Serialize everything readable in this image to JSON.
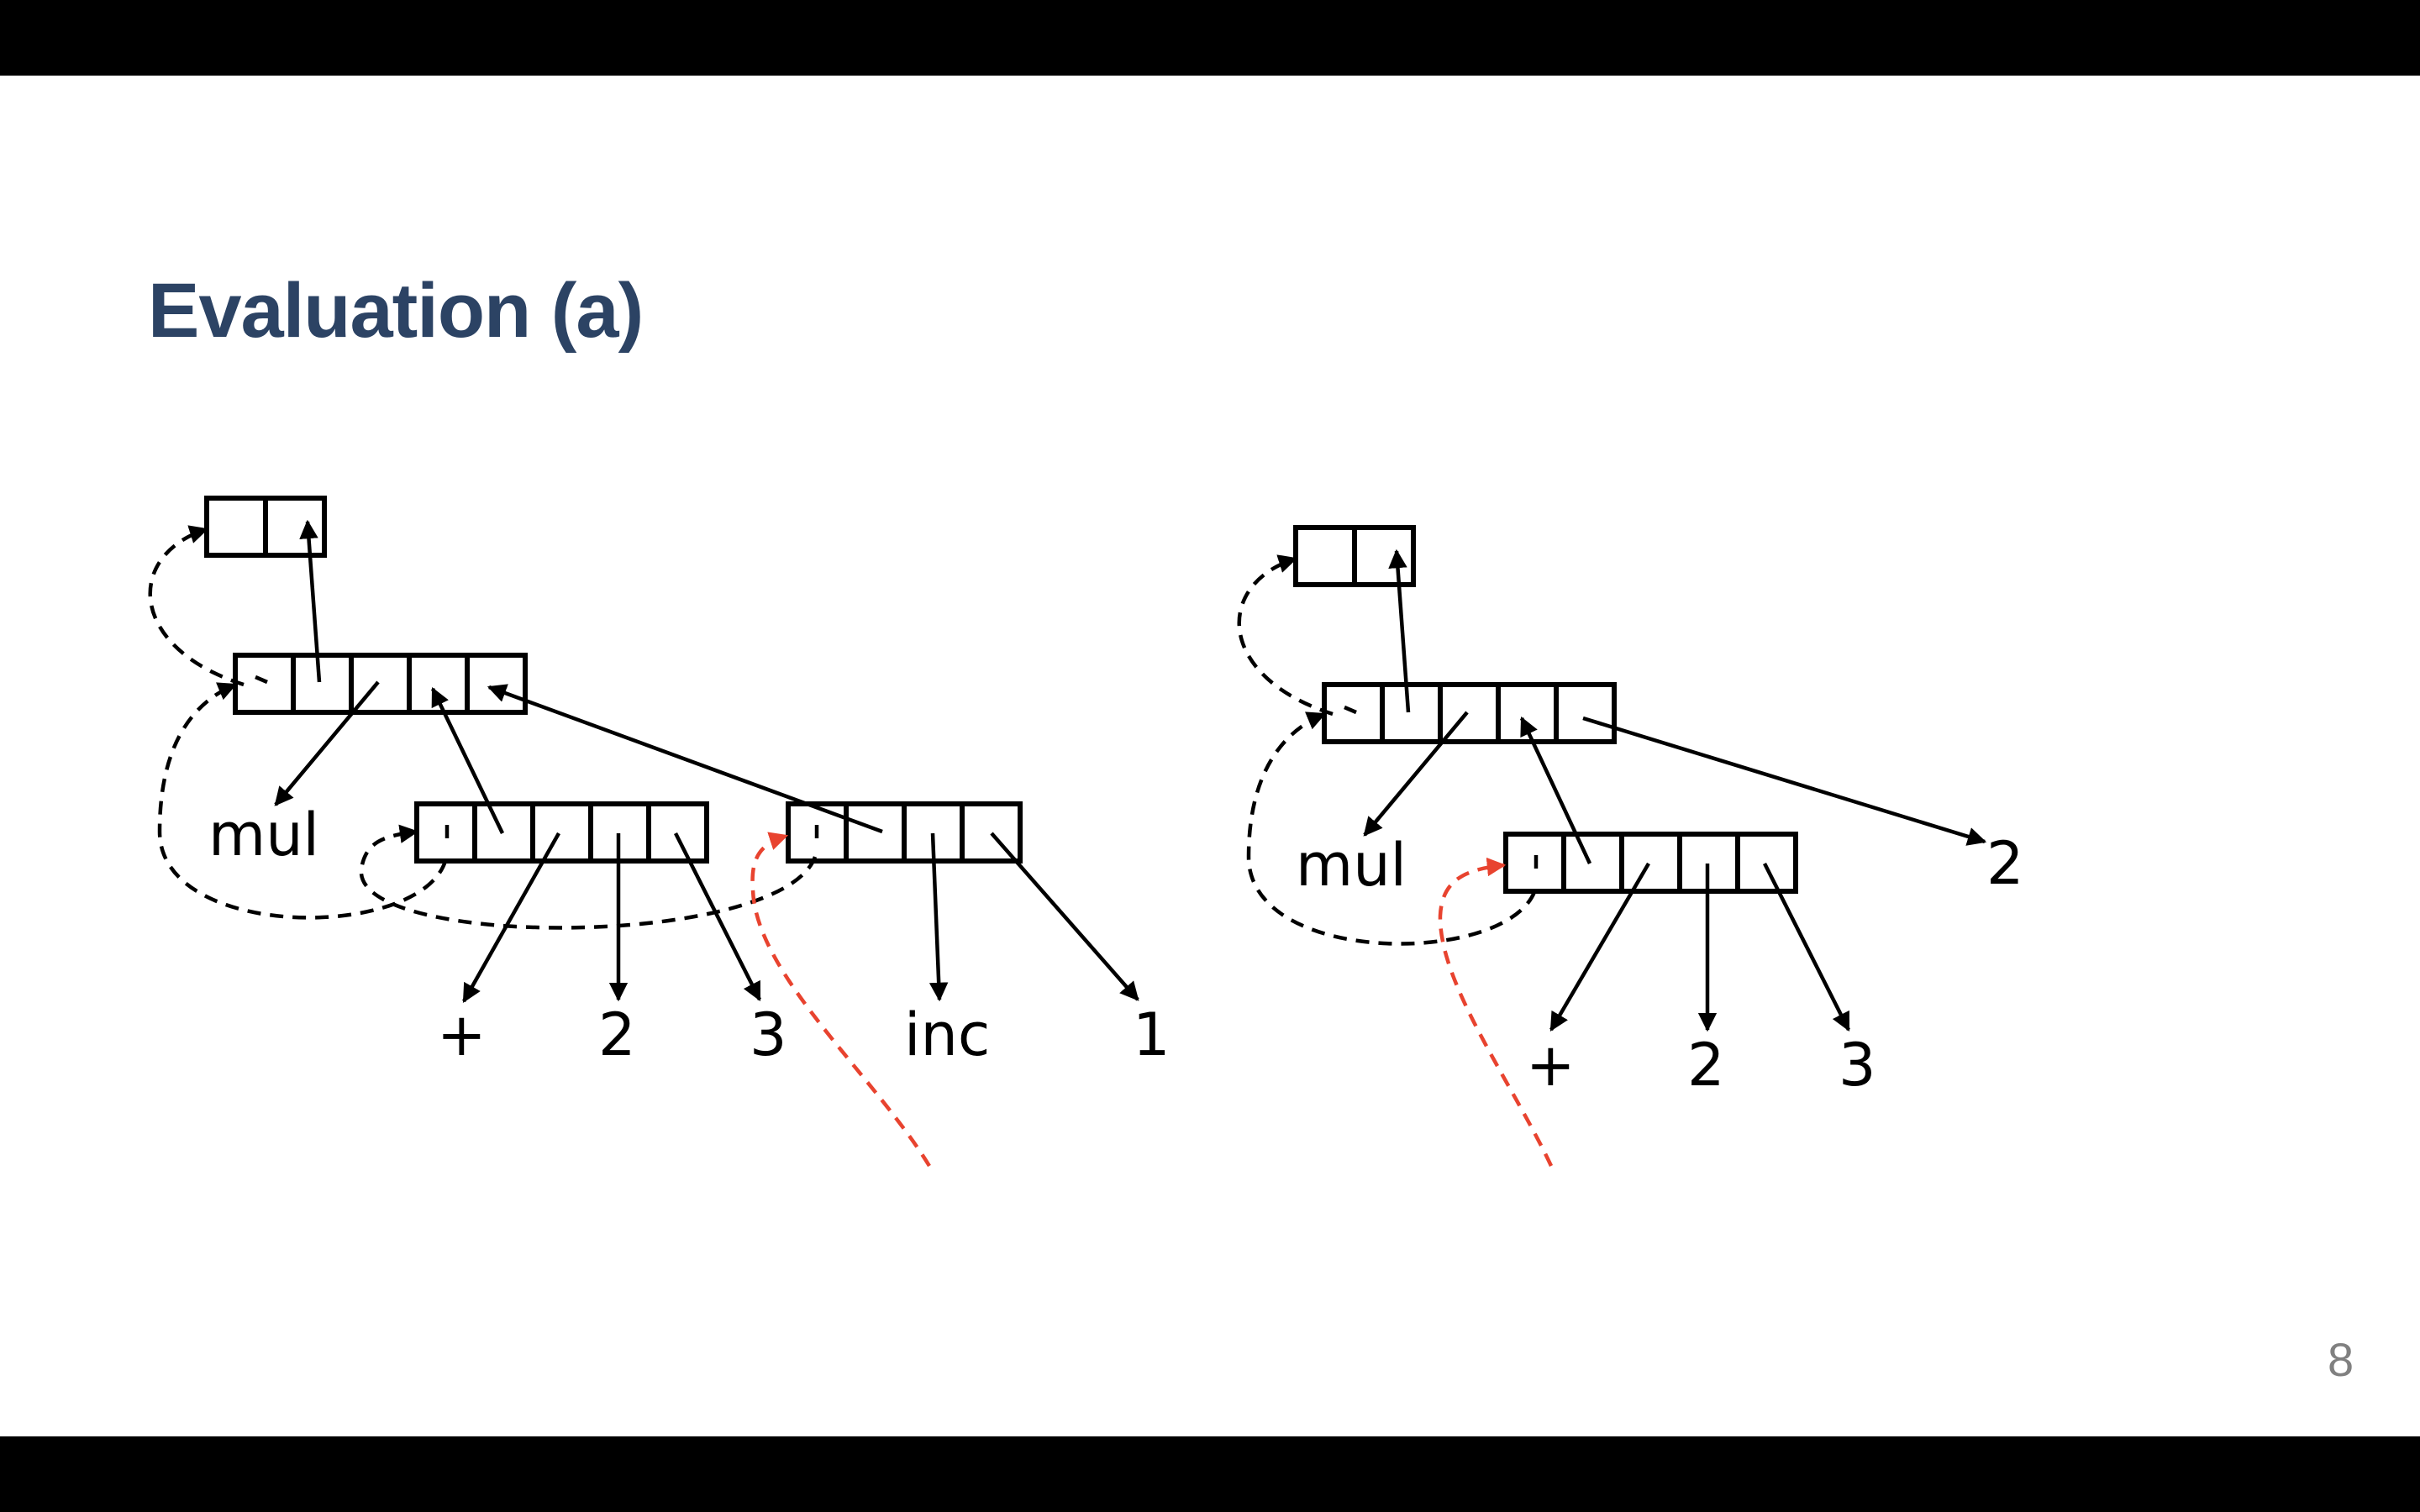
{
  "slide": {
    "title": "Evaluation (a)",
    "page_number": "8"
  },
  "colors": {
    "title": "#2c4364",
    "continuation_arrow": "#e8432f",
    "letterbox": "#000000",
    "page_number": "#808080"
  },
  "diagram_left": {
    "symbols": {
      "mul": "mul",
      "plus": "+",
      "two": "2",
      "three": "3",
      "inc": "inc",
      "one": "1"
    }
  },
  "diagram_right": {
    "symbols": {
      "mul": "mul",
      "plus": "+",
      "two": "2",
      "three": "3",
      "result": "2"
    }
  }
}
